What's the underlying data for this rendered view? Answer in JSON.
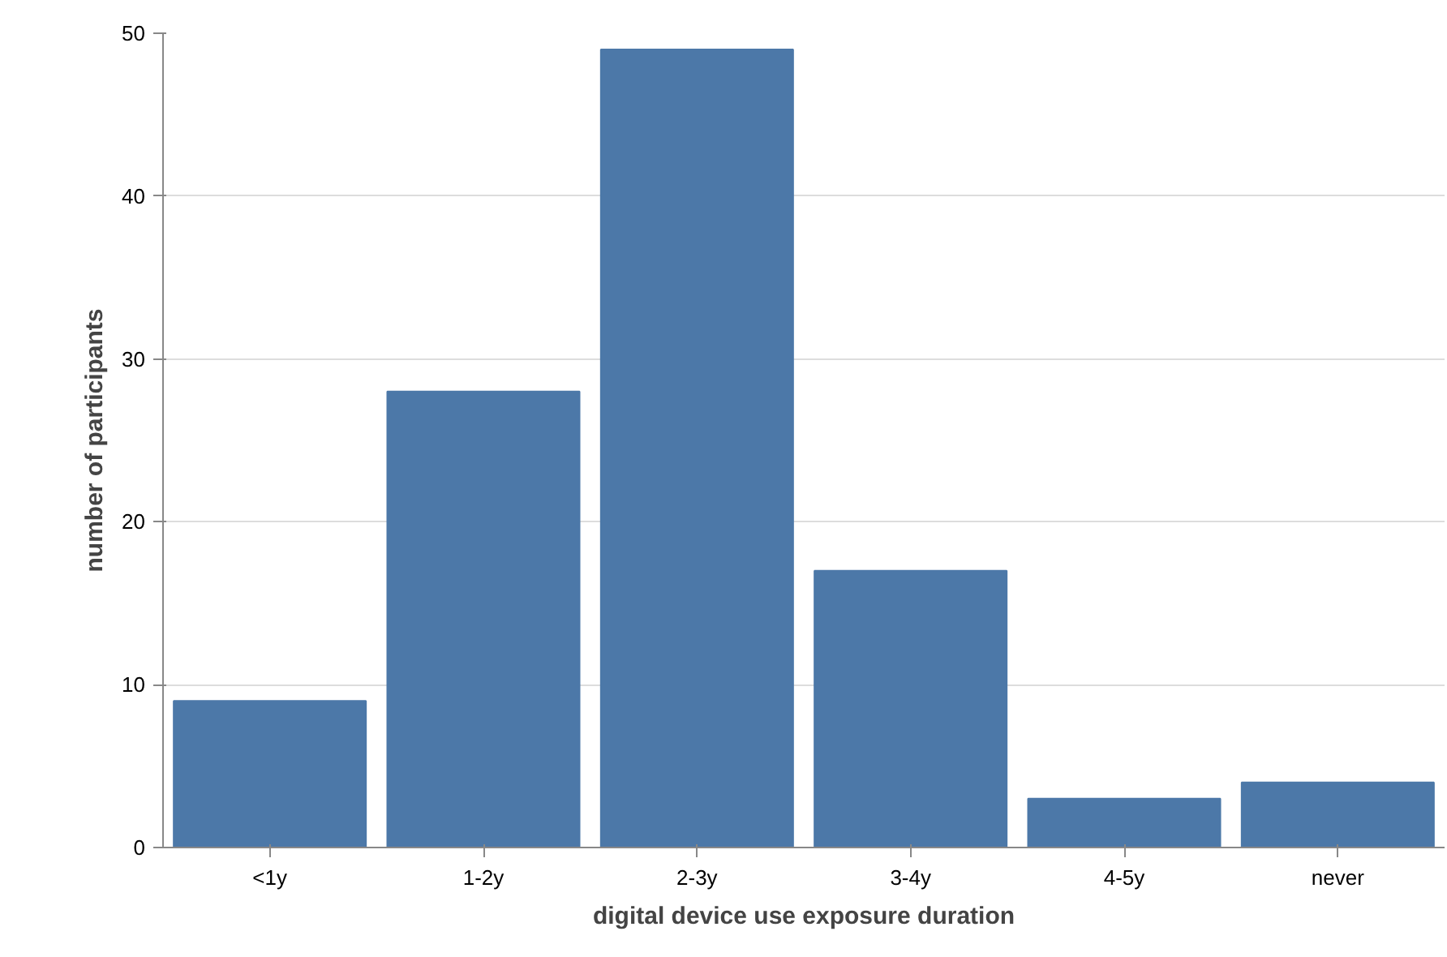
{
  "chart_data": {
    "type": "bar",
    "xlabel": "digital device use exposure duration",
    "ylabel": "number of participants",
    "categories": [
      "<1y",
      "1-2y",
      "2-3y",
      "3-4y",
      "4-5y",
      "never"
    ],
    "values": [
      9,
      28,
      49,
      17,
      3,
      4
    ],
    "color": "#4c78a8",
    "ylim": [
      0,
      50
    ],
    "yticks": [
      0,
      10,
      20,
      30,
      40,
      50
    ],
    "grid": "y"
  }
}
